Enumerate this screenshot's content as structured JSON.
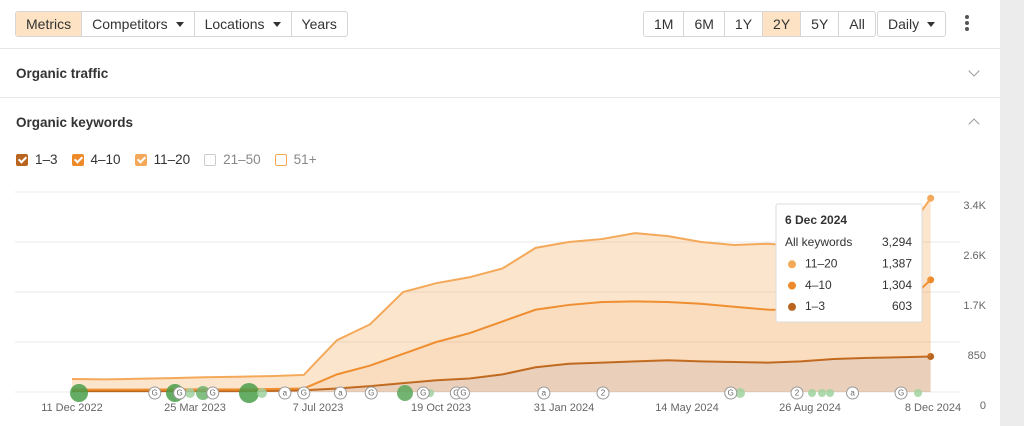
{
  "toolbar": {
    "tabs": [
      {
        "label": "Metrics",
        "dropdown": false
      },
      {
        "label": "Competitors",
        "dropdown": true
      },
      {
        "label": "Locations",
        "dropdown": true
      },
      {
        "label": "Years",
        "dropdown": false
      }
    ],
    "active_tab": "Metrics",
    "ranges": [
      "1M",
      "6M",
      "1Y",
      "2Y",
      "5Y",
      "All"
    ],
    "active_range": "2Y",
    "interval": "Daily"
  },
  "sections": {
    "organic_traffic": "Organic traffic",
    "organic_keywords": "Organic keywords"
  },
  "chart_data": {
    "type": "area",
    "stacked": true,
    "x": [
      "11 Dec 2022",
      "8 Jan 2023",
      "5 Feb 2023",
      "5 Mar 2023",
      "2 Apr 2023",
      "30 Apr 2023",
      "28 May 2023",
      "25 Jun 2023",
      "23 Jul 2023",
      "20 Aug 2023",
      "17 Sep 2023",
      "15 Oct 2023",
      "12 Nov 2023",
      "10 Dec 2023",
      "7 Jan 2024",
      "4 Feb 2024",
      "3 Mar 2024",
      "31 Mar 2024",
      "28 Apr 2024",
      "26 May 2024",
      "23 Jun 2024",
      "21 Jul 2024",
      "18 Aug 2024",
      "15 Sep 2024",
      "13 Oct 2024",
      "10 Nov 2024",
      "6 Dec 2024"
    ],
    "series": [
      {
        "name": "1–3",
        "color": "#b9651f",
        "checked": true,
        "values": [
          15,
          15,
          15,
          15,
          15,
          15,
          20,
          30,
          60,
          100,
          150,
          200,
          230,
          300,
          420,
          480,
          500,
          520,
          540,
          520,
          510,
          500,
          520,
          560,
          580,
          590,
          603
        ]
      },
      {
        "name": "4–10",
        "color": "#ee8a2a",
        "checked": true,
        "values": [
          25,
          25,
          25,
          30,
          30,
          30,
          30,
          30,
          240,
          350,
          500,
          650,
          770,
          900,
          980,
          1000,
          1030,
          1020,
          990,
          980,
          940,
          900,
          870,
          840,
          840,
          830,
          1304
        ]
      },
      {
        "name": "11–20",
        "color": "#f4a95a",
        "checked": true,
        "values": [
          180,
          175,
          185,
          190,
          205,
          215,
          220,
          230,
          580,
          700,
          1050,
          1000,
          950,
          900,
          1050,
          1070,
          1070,
          1160,
          1120,
          1050,
          1050,
          1120,
          1090,
          1100,
          1100,
          1140,
          1387
        ]
      }
    ],
    "unchecked_series": [
      {
        "name": "21–50",
        "color": "#cccccc"
      },
      {
        "name": "51+",
        "color": "#f4a95a"
      }
    ],
    "xlim": [
      "11 Dec 2022",
      "8 Dec 2024"
    ],
    "xticks": [
      "11 Dec 2022",
      "25 Mar 2023",
      "7 Jul 2023",
      "19 Oct 2023",
      "31 Jan 2024",
      "14 May 2024",
      "26 Aug 2024",
      "8 Dec 2024"
    ],
    "ylim": [
      0,
      3400
    ],
    "yticks": [
      0,
      850,
      {
        "value": 1700,
        "label": "1.7K"
      },
      {
        "value": 2550,
        "label": "2.6K"
      },
      {
        "value": 3400,
        "label": "3.4K"
      }
    ],
    "grid": true,
    "events": [
      {
        "date": "19 Feb 2023",
        "label": "G"
      },
      {
        "date": "12 Mar 2023",
        "label": "G"
      },
      {
        "date": "9 Apr 2023",
        "label": "G"
      },
      {
        "date": "9 Jun 2023",
        "label": "a"
      },
      {
        "date": "25 Jun 2023",
        "label": "G"
      },
      {
        "date": "26 Jul 2023",
        "label": "a"
      },
      {
        "date": "21 Aug 2023",
        "label": "G"
      },
      {
        "date": "4 Oct 2023",
        "label": "G"
      },
      {
        "date": "1 Nov 2023",
        "label": "G"
      },
      {
        "date": "7 Nov 2023",
        "label": "G"
      },
      {
        "date": "14 Jan 2024",
        "label": "a"
      },
      {
        "date": "4 Mar 2024",
        "label": "2"
      },
      {
        "date": "20 Jun 2024",
        "label": "G"
      },
      {
        "date": "15 Aug 2024",
        "label": "2"
      },
      {
        "date": "1 Oct 2024",
        "label": "a"
      },
      {
        "date": "11 Nov 2024",
        "label": "G"
      }
    ],
    "tooltip": {
      "date": "6 Dec 2024",
      "rows": [
        {
          "label": "All keywords",
          "value": "3,294"
        },
        {
          "label": "11–20",
          "value": "1,387",
          "color": "#f4a95a"
        },
        {
          "label": "4–10",
          "value": "1,304",
          "color": "#ee8a2a"
        },
        {
          "label": "1–3",
          "value": "603",
          "color": "#b9651f"
        }
      ]
    }
  }
}
